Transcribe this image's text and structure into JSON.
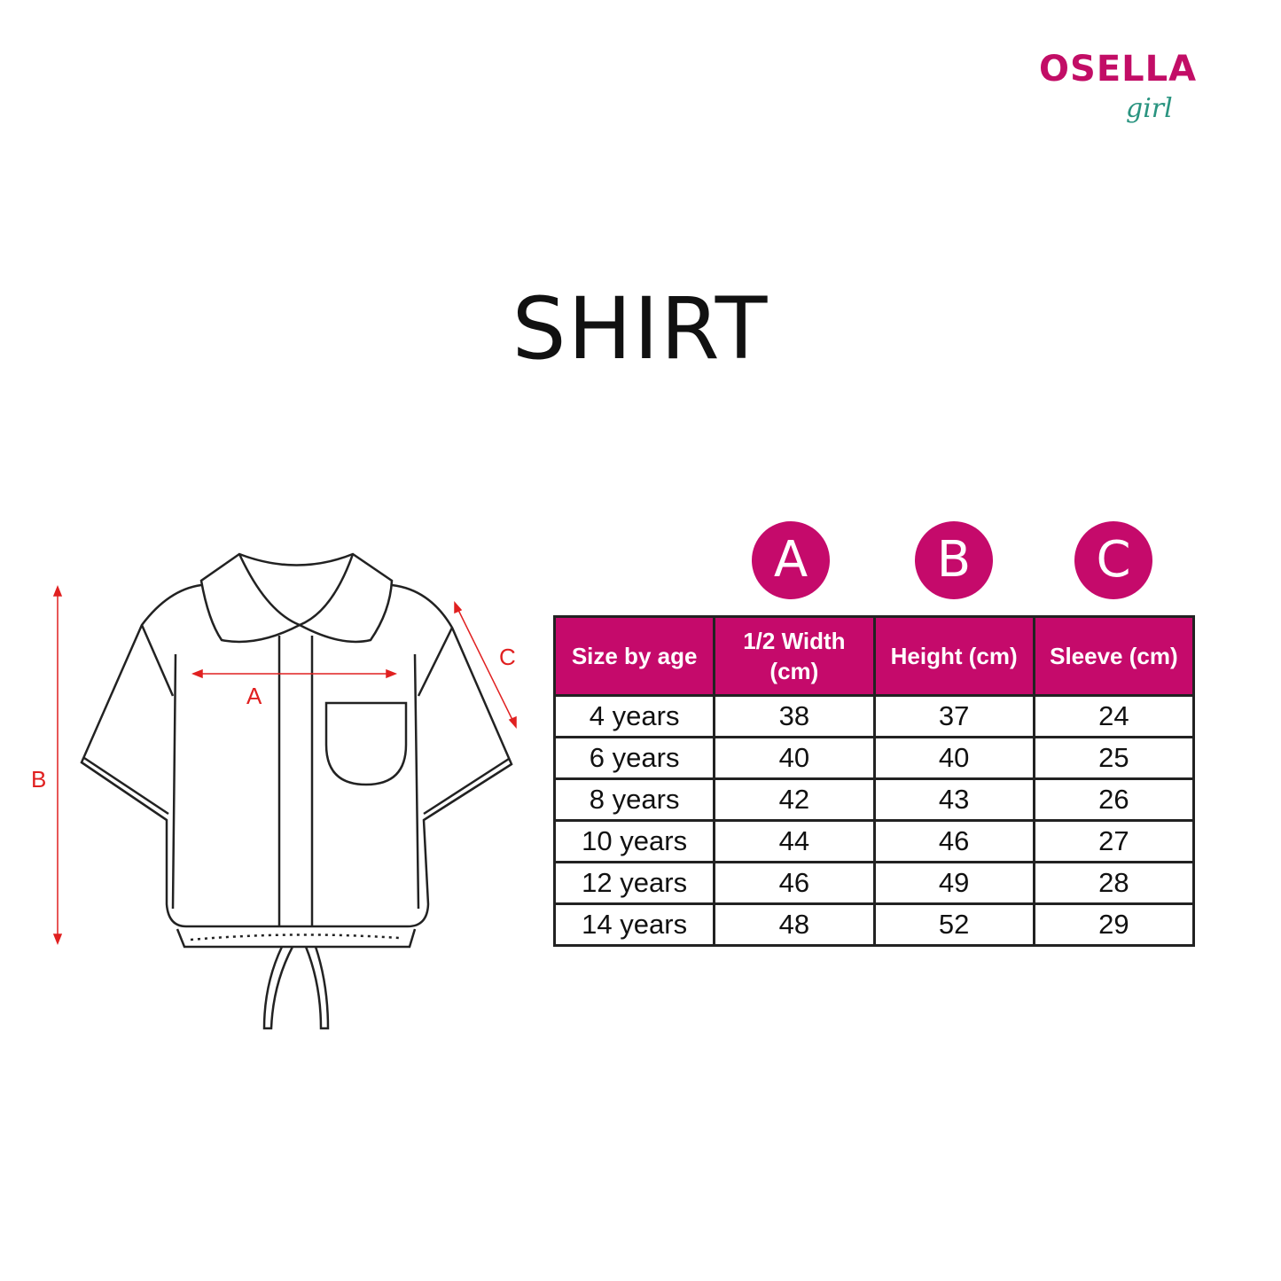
{
  "brand": {
    "name": "OSELLA",
    "sub": "girl",
    "color": "#c20d66",
    "sub_color": "#2a9480"
  },
  "title": "SHIRT",
  "measure_labels": {
    "a": "A",
    "b": "B",
    "c": "C",
    "color": "#e02020"
  },
  "badges": [
    "A",
    "B",
    "C"
  ],
  "accent": "#c50a6b",
  "table": {
    "headers": [
      "Size by age",
      "1/2 Width (cm)",
      "Height (cm)",
      "Sleeve (cm)"
    ],
    "rows": [
      [
        "4 years",
        "38",
        "37",
        "24"
      ],
      [
        "6 years",
        "40",
        "40",
        "25"
      ],
      [
        "8 years",
        "42",
        "43",
        "26"
      ],
      [
        "10 years",
        "44",
        "46",
        "27"
      ],
      [
        "12 years",
        "46",
        "49",
        "28"
      ],
      [
        "14 years",
        "48",
        "52",
        "29"
      ]
    ]
  }
}
